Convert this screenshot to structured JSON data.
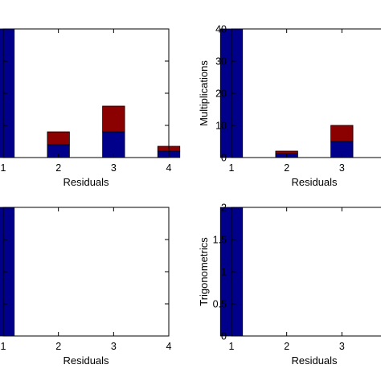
{
  "colors": {
    "bottom": "#00008b",
    "top": "#8b0000",
    "axis": "#000000"
  },
  "chart_data": [
    {
      "type": "bar",
      "stacked": true,
      "title": "",
      "xlabel": "Residuals",
      "ylabel": "",
      "x": [
        1,
        2,
        3,
        4
      ],
      "xticks": [
        "1",
        "2",
        "3",
        "4"
      ],
      "xlim": [
        1,
        4
      ],
      "ylim": [
        0,
        40
      ],
      "yticks": [],
      "show_right_ticks": true,
      "series": [
        {
          "values": [
            40,
            4,
            8,
            2
          ]
        },
        {
          "values": [
            0,
            4,
            8,
            1.5
          ]
        }
      ]
    },
    {
      "type": "bar",
      "stacked": true,
      "title": "",
      "xlabel": "Residuals",
      "ylabel": "Multiplications",
      "x": [
        1,
        2,
        3
      ],
      "xticks": [
        "1",
        "2",
        "3"
      ],
      "xlim": [
        1,
        4
      ],
      "ylim": [
        0,
        40
      ],
      "yticks": [
        "0",
        "10",
        "20",
        "30",
        "40"
      ],
      "show_right_ticks": false,
      "series": [
        {
          "values": [
            40,
            1.2,
            5
          ]
        },
        {
          "values": [
            0,
            0.8,
            5
          ]
        }
      ]
    },
    {
      "type": "bar",
      "stacked": true,
      "title": "",
      "xlabel": "Residuals",
      "ylabel": "",
      "x": [
        1,
        2,
        3,
        4
      ],
      "xticks": [
        "1",
        "2",
        "3",
        "4"
      ],
      "xlim": [
        1,
        4
      ],
      "ylim": [
        0,
        2
      ],
      "yticks": [],
      "show_right_ticks": true,
      "series": [
        {
          "values": [
            2,
            0,
            0,
            0
          ]
        },
        {
          "values": [
            0,
            0,
            0,
            0
          ]
        }
      ]
    },
    {
      "type": "bar",
      "stacked": true,
      "title": "",
      "xlabel": "Residuals",
      "ylabel": "Trigonometrics",
      "x": [
        1,
        2,
        3
      ],
      "xticks": [
        "1",
        "2",
        "3"
      ],
      "xlim": [
        1,
        4
      ],
      "ylim": [
        0,
        2
      ],
      "yticks": [
        "0",
        "0.5",
        "1",
        "1.5",
        "2"
      ],
      "show_right_ticks": false,
      "series": [
        {
          "values": [
            2,
            0,
            0
          ]
        },
        {
          "values": [
            0,
            0,
            0
          ]
        }
      ]
    }
  ]
}
